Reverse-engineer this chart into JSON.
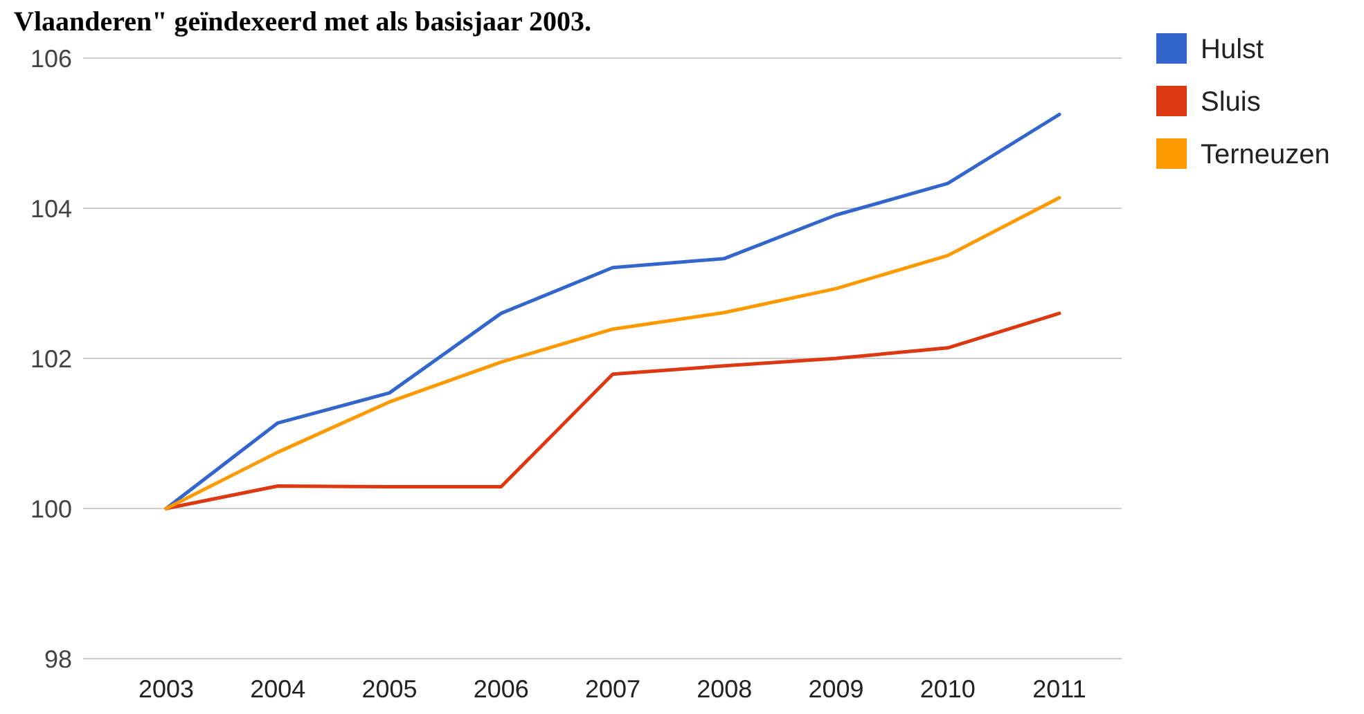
{
  "chart_data": {
    "type": "line",
    "title": "Vlaanderen\" geïndexeerd met als basisjaar 2003.",
    "categories": [
      "2003",
      "2004",
      "2005",
      "2006",
      "2007",
      "2008",
      "2009",
      "2010",
      "2011"
    ],
    "series": [
      {
        "name": "Hulst",
        "color": "#3366cc",
        "values": [
          100,
          101.14,
          101.54,
          102.6,
          103.21,
          103.33,
          103.91,
          104.33,
          105.25
        ]
      },
      {
        "name": "Sluis",
        "color": "#dc3912",
        "values": [
          100,
          100.3,
          100.29,
          100.29,
          101.79,
          101.9,
          102.0,
          102.14,
          102.6
        ]
      },
      {
        "name": "Terneuzen",
        "color": "#ff9900",
        "values": [
          100,
          100.75,
          101.42,
          101.95,
          102.39,
          102.61,
          102.93,
          103.37,
          104.14
        ]
      }
    ],
    "ylim": [
      98,
      106
    ],
    "yticks": [
      98,
      100,
      102,
      104,
      106
    ],
    "grid": "y",
    "legend": "top right",
    "marker": "none",
    "line_style": "solid"
  }
}
